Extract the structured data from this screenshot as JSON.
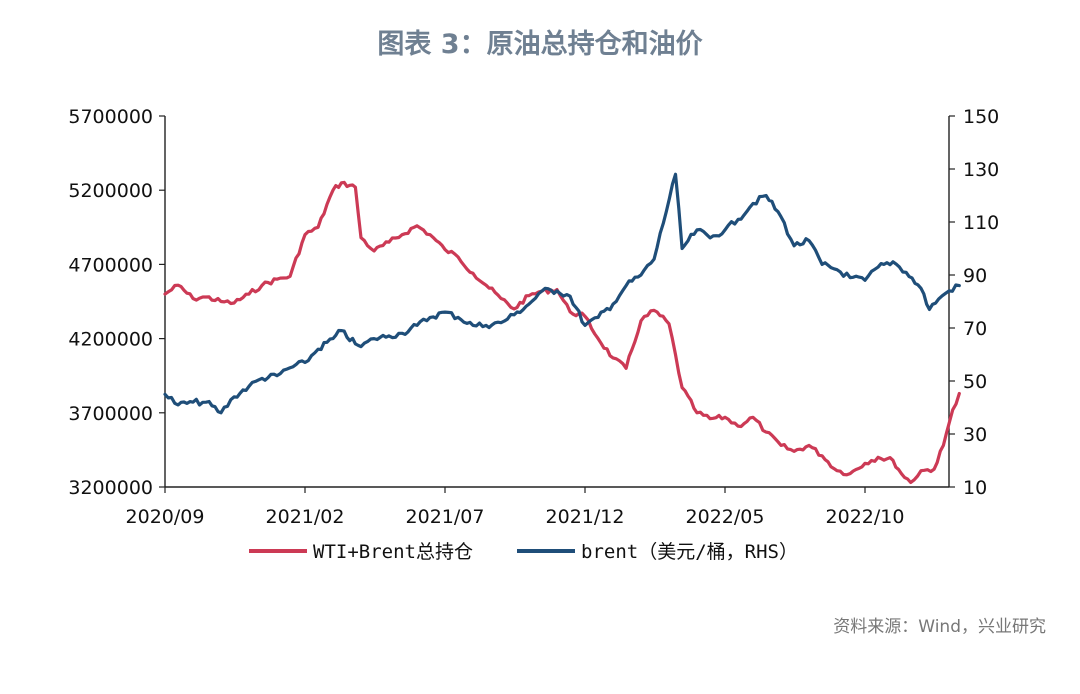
{
  "chart_data": {
    "type": "line",
    "title": "图表 3：原油总持仓和油价",
    "x_axis": {
      "start": "2020/09",
      "end": "2023/01",
      "tick_labels": [
        "2020/09",
        "2021/02",
        "2021/07",
        "2021/12",
        "2022/05",
        "2022/10"
      ]
    },
    "y_left": {
      "min": 3200000,
      "max": 5700000,
      "tick_labels": [
        "3200000",
        "3700000",
        "4200000",
        "4700000",
        "5200000",
        "5700000"
      ]
    },
    "y_right": {
      "min": 10,
      "max": 150,
      "tick_labels": [
        "10",
        "30",
        "50",
        "70",
        "90",
        "110",
        "130",
        "150"
      ]
    },
    "grid": false,
    "legend_position": "bottom",
    "series": [
      {
        "name": "WTI+Brent总持仓",
        "axis": "left",
        "color": "#cc3a55",
        "points": [
          [
            "2020-09-01",
            4500000
          ],
          [
            "2020-09-15",
            4560000
          ],
          [
            "2020-10-01",
            4470000
          ],
          [
            "2020-10-15",
            4480000
          ],
          [
            "2020-11-01",
            4450000
          ],
          [
            "2020-11-15",
            4440000
          ],
          [
            "2020-12-01",
            4500000
          ],
          [
            "2020-12-15",
            4560000
          ],
          [
            "2021-01-01",
            4600000
          ],
          [
            "2021-01-15",
            4620000
          ],
          [
            "2021-02-01",
            4900000
          ],
          [
            "2021-02-15",
            4950000
          ],
          [
            "2021-03-01",
            5200000
          ],
          [
            "2021-03-10",
            5250000
          ],
          [
            "2021-03-25",
            5220000
          ],
          [
            "2021-04-01",
            4880000
          ],
          [
            "2021-04-15",
            4790000
          ],
          [
            "2021-05-01",
            4850000
          ],
          [
            "2021-05-15",
            4900000
          ],
          [
            "2021-06-01",
            4960000
          ],
          [
            "2021-06-15",
            4900000
          ],
          [
            "2021-07-01",
            4800000
          ],
          [
            "2021-07-15",
            4750000
          ],
          [
            "2021-08-01",
            4640000
          ],
          [
            "2021-08-15",
            4560000
          ],
          [
            "2021-09-01",
            4470000
          ],
          [
            "2021-09-15",
            4400000
          ],
          [
            "2021-10-01",
            4490000
          ],
          [
            "2021-10-15",
            4520000
          ],
          [
            "2021-11-01",
            4530000
          ],
          [
            "2021-11-15",
            4380000
          ],
          [
            "2021-12-01",
            4350000
          ],
          [
            "2021-12-15",
            4200000
          ],
          [
            "2022-01-01",
            4070000
          ],
          [
            "2022-01-15",
            4000000
          ],
          [
            "2022-02-01",
            4320000
          ],
          [
            "2022-02-15",
            4390000
          ],
          [
            "2022-03-01",
            4300000
          ],
          [
            "2022-03-15",
            3870000
          ],
          [
            "2022-04-01",
            3700000
          ],
          [
            "2022-04-15",
            3660000
          ],
          [
            "2022-05-01",
            3670000
          ],
          [
            "2022-05-15",
            3610000
          ],
          [
            "2022-06-01",
            3670000
          ],
          [
            "2022-06-15",
            3570000
          ],
          [
            "2022-07-01",
            3480000
          ],
          [
            "2022-07-15",
            3440000
          ],
          [
            "2022-08-01",
            3480000
          ],
          [
            "2022-08-15",
            3410000
          ],
          [
            "2022-09-01",
            3310000
          ],
          [
            "2022-09-15",
            3290000
          ],
          [
            "2022-10-01",
            3360000
          ],
          [
            "2022-10-15",
            3400000
          ],
          [
            "2022-11-01",
            3380000
          ],
          [
            "2022-11-10",
            3290000
          ],
          [
            "2022-11-20",
            3230000
          ],
          [
            "2022-12-01",
            3310000
          ],
          [
            "2022-12-15",
            3320000
          ],
          [
            "2022-12-25",
            3480000
          ],
          [
            "2023-01-05",
            3720000
          ],
          [
            "2023-01-12",
            3830000
          ]
        ]
      },
      {
        "name": "brent（美元/桶，RHS）",
        "axis": "right",
        "color": "#1f4e79",
        "points": [
          [
            "2020-09-01",
            45
          ],
          [
            "2020-09-15",
            41
          ],
          [
            "2020-10-01",
            42
          ],
          [
            "2020-10-15",
            42
          ],
          [
            "2020-11-01",
            38
          ],
          [
            "2020-11-15",
            44
          ],
          [
            "2020-12-01",
            48
          ],
          [
            "2020-12-15",
            51
          ],
          [
            "2021-01-01",
            52
          ],
          [
            "2021-01-15",
            55
          ],
          [
            "2021-02-01",
            57
          ],
          [
            "2021-02-15",
            62
          ],
          [
            "2021-03-01",
            66
          ],
          [
            "2021-03-10",
            69
          ],
          [
            "2021-03-25",
            64
          ],
          [
            "2021-04-01",
            63
          ],
          [
            "2021-04-15",
            66
          ],
          [
            "2021-05-01",
            67
          ],
          [
            "2021-05-15",
            68
          ],
          [
            "2021-06-01",
            71
          ],
          [
            "2021-06-15",
            74
          ],
          [
            "2021-07-01",
            76
          ],
          [
            "2021-07-15",
            74
          ],
          [
            "2021-08-01",
            71
          ],
          [
            "2021-08-15",
            71
          ],
          [
            "2021-09-01",
            72
          ],
          [
            "2021-09-15",
            75
          ],
          [
            "2021-10-01",
            79
          ],
          [
            "2021-10-15",
            84
          ],
          [
            "2021-11-01",
            84
          ],
          [
            "2021-11-15",
            82
          ],
          [
            "2021-12-01",
            71
          ],
          [
            "2021-12-15",
            74
          ],
          [
            "2022-01-01",
            79
          ],
          [
            "2022-01-15",
            86
          ],
          [
            "2022-02-01",
            90
          ],
          [
            "2022-02-15",
            96
          ],
          [
            "2022-03-08",
            128
          ],
          [
            "2022-03-15",
            100
          ],
          [
            "2022-04-01",
            107
          ],
          [
            "2022-04-15",
            104
          ],
          [
            "2022-05-01",
            107
          ],
          [
            "2022-05-15",
            111
          ],
          [
            "2022-06-01",
            117
          ],
          [
            "2022-06-15",
            120
          ],
          [
            "2022-07-01",
            112
          ],
          [
            "2022-07-15",
            101
          ],
          [
            "2022-08-01",
            103
          ],
          [
            "2022-08-15",
            94
          ],
          [
            "2022-09-01",
            92
          ],
          [
            "2022-09-15",
            89
          ],
          [
            "2022-10-01",
            88
          ],
          [
            "2022-10-15",
            93
          ],
          [
            "2022-11-01",
            95
          ],
          [
            "2022-11-15",
            91
          ],
          [
            "2022-12-01",
            85
          ],
          [
            "2022-12-10",
            77
          ],
          [
            "2022-12-20",
            81
          ],
          [
            "2023-01-01",
            84
          ],
          [
            "2023-01-12",
            86
          ]
        ]
      }
    ]
  },
  "source_note": "资料来源：Wind，兴业研究"
}
